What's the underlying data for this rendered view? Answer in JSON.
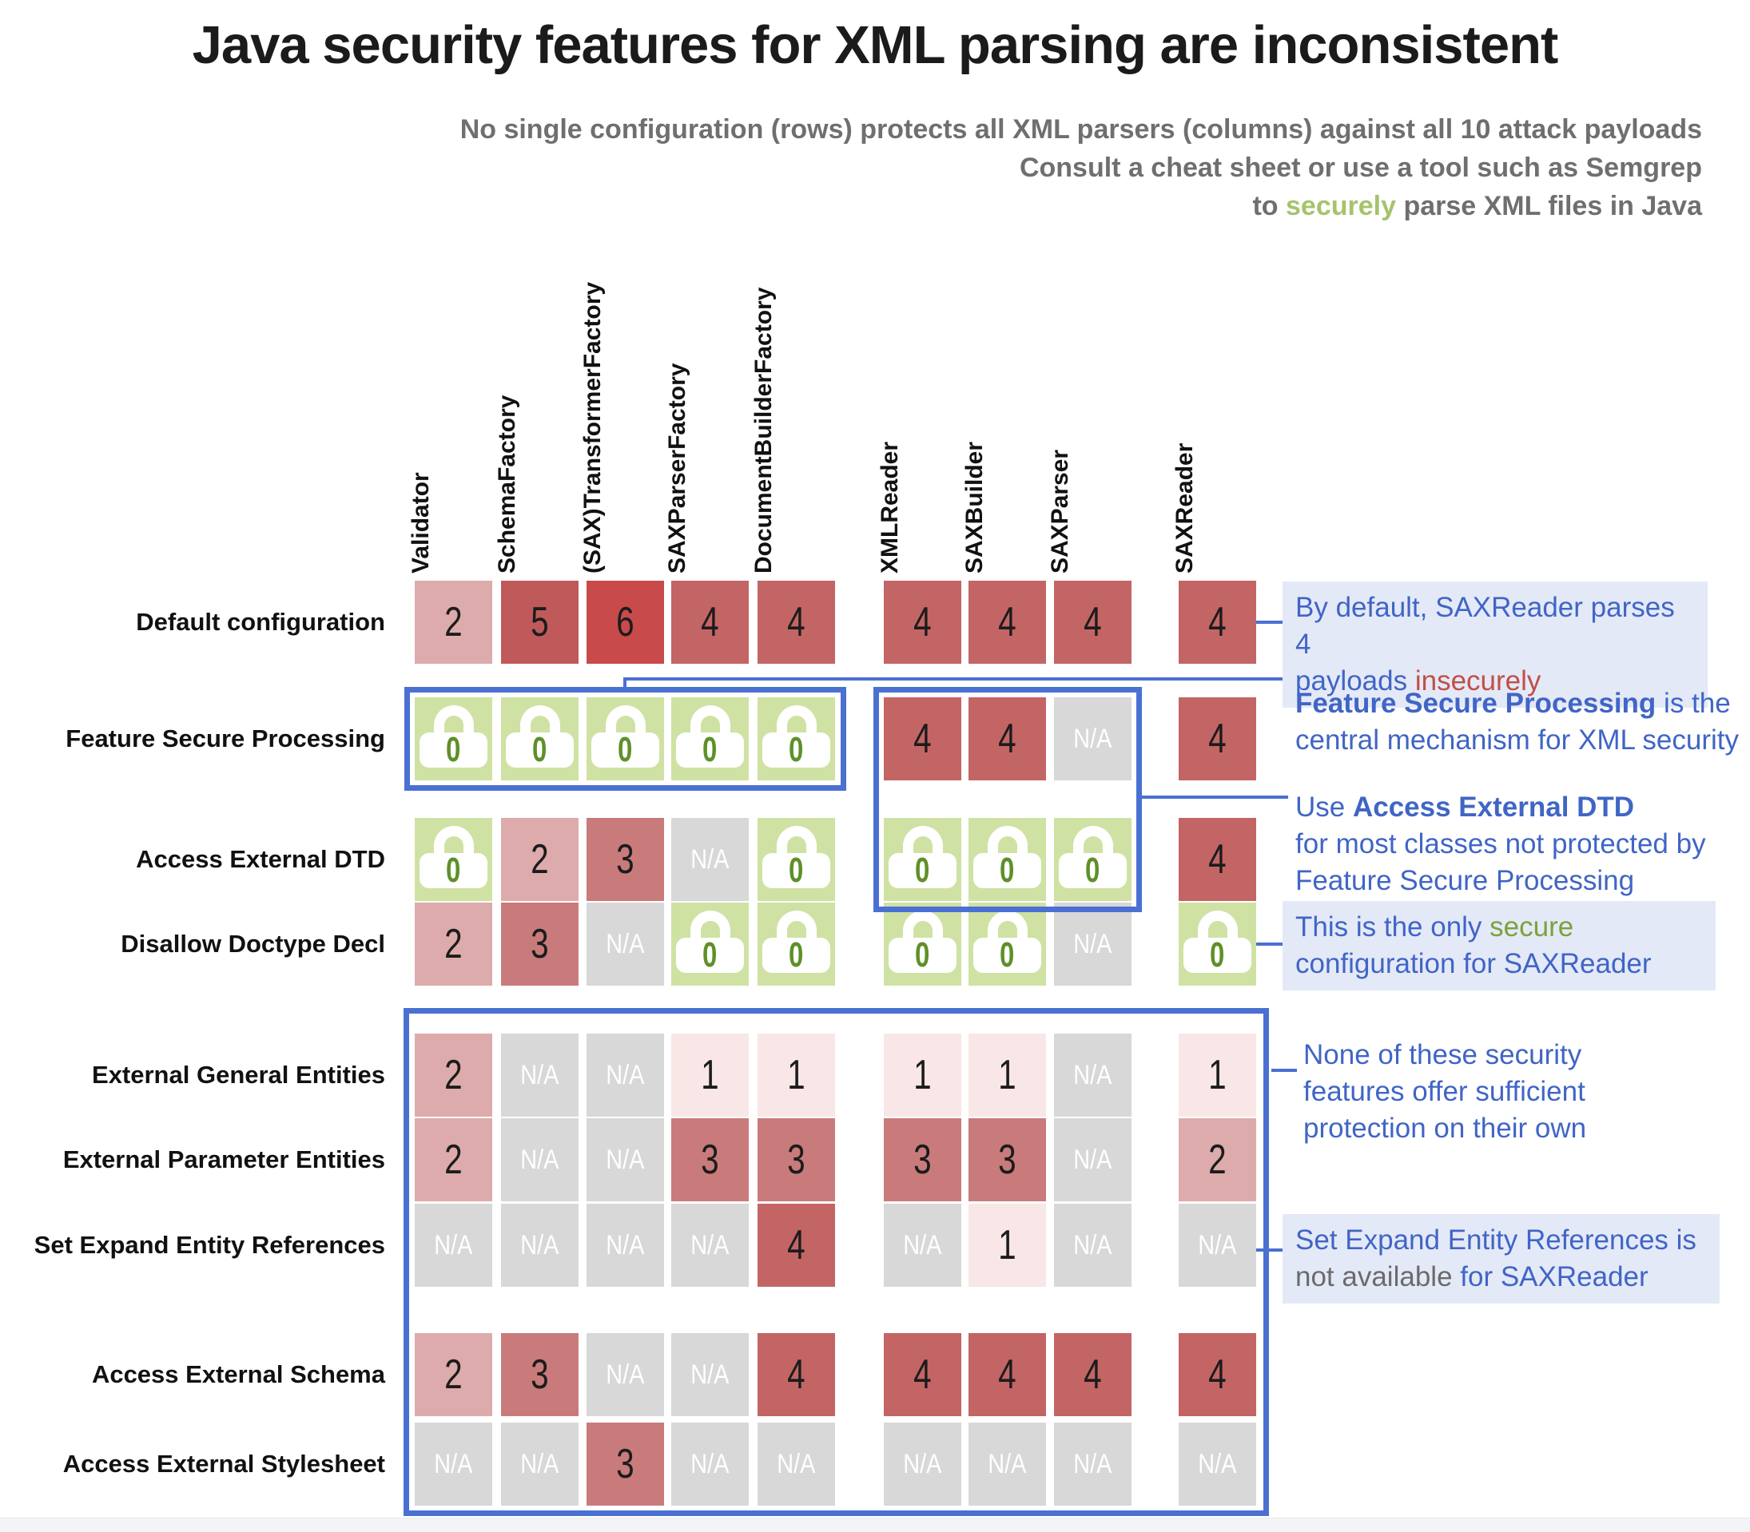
{
  "title": "Java security features for XML parsing are inconsistent",
  "subtitle": {
    "line1": "No single configuration (rows) protects all XML parsers (columns) against all 10 attack payloads",
    "line2": "Consult a cheat sheet or use a tool such as Semgrep",
    "line3_pre": "to ",
    "line3_green": "securely",
    "line3_post": " parse XML files in Java"
  },
  "chart_data": {
    "type": "heatmap",
    "columns": [
      "Validator",
      "SchemaFactory",
      "(SAX)TransformerFactory",
      "SAXParserFactory",
      "DocumentBuilderFactory",
      "XMLReader",
      "SAXBuilder",
      "SAXParser",
      "SAXReader"
    ],
    "rows": [
      "Default configuration",
      "Feature Secure Processing",
      "Access External DTD",
      "Disallow Doctype Decl",
      "External General Entities",
      "External Parameter Entities",
      "Set Expand Entity References",
      "Access External Schema",
      "Access External Stylesheet"
    ],
    "matrix": [
      [
        2,
        5,
        6,
        4,
        4,
        4,
        4,
        4,
        4
      ],
      [
        0,
        0,
        0,
        0,
        0,
        4,
        4,
        "N/A",
        4
      ],
      [
        0,
        2,
        3,
        "N/A",
        0,
        0,
        0,
        0,
        4
      ],
      [
        2,
        3,
        "N/A",
        0,
        0,
        0,
        0,
        "N/A",
        0
      ],
      [
        2,
        "N/A",
        "N/A",
        1,
        1,
        1,
        1,
        "N/A",
        1
      ],
      [
        2,
        "N/A",
        "N/A",
        3,
        3,
        3,
        3,
        "N/A",
        2
      ],
      [
        "N/A",
        "N/A",
        "N/A",
        "N/A",
        4,
        "N/A",
        1,
        "N/A",
        "N/A"
      ],
      [
        2,
        3,
        "N/A",
        "N/A",
        4,
        4,
        4,
        4,
        4
      ],
      [
        "N/A",
        "N/A",
        3,
        "N/A",
        "N/A",
        "N/A",
        "N/A",
        "N/A",
        "N/A"
      ]
    ],
    "value_range": [
      0,
      6
    ],
    "na_label": "N/A",
    "secure_value": 0,
    "column_group_breaks_after": [
      "DocumentBuilderFactory",
      "SAXParser"
    ],
    "row_group_breaks_after": [
      "Default configuration",
      "Disallow Doctype Decl",
      "Set Expand Entity References"
    ]
  },
  "annotations": {
    "a1": {
      "line1": "By default, SAXReader parses 4",
      "line2_pre": "payloads ",
      "line2_red": "insecurely"
    },
    "a2": {
      "bold": "Feature Secure Processing",
      "rest1": " is the",
      "line2": "central mechanism for XML security"
    },
    "a3": {
      "pre": "Use ",
      "bold": "Access External DTD",
      "line2": "for most classes not protected by",
      "line3": "Feature Secure Processing"
    },
    "a4": {
      "line1_pre": "This is the only ",
      "line1_green": "secure",
      "line2": "configuration for SAXReader"
    },
    "a5": {
      "line1": "None of these security",
      "line2": "features offer sufficient",
      "line3": "protection on their own"
    },
    "a6": {
      "line1": "Set Expand Entity References is",
      "line2_gray": "not available",
      "line2_rest": " for SAXReader"
    }
  },
  "colors": {
    "accent_blue": "#4a70d2",
    "annotation_text": "#4065c5",
    "annotation_highlight_bg": "#e4e9f7",
    "insecure_red_text": "#c14f48",
    "secure_green_text": "#7ea13c",
    "subtitle_green": "#a6c36c",
    "subtitle_gray": "#6f6f6f",
    "na_bg": "#d8d8d8",
    "secure_cell_bg": "#cfe2a4",
    "lock_digit_green": "#5e9029",
    "value_colors": {
      "1": "#f8e7e6",
      "2": "#ddabab",
      "3": "#c97b7b",
      "4": "#c36565",
      "5": "#c05a5a",
      "6": "#c84a4a"
    }
  }
}
